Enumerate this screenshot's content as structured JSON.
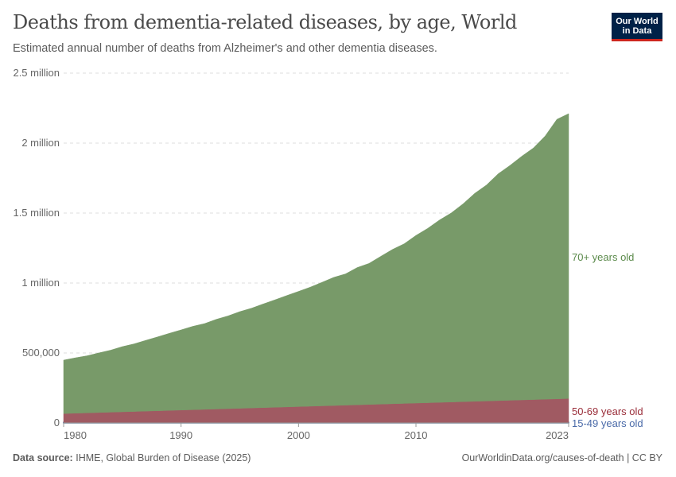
{
  "header": {
    "title": "Deaths from dementia-related diseases, by age, World",
    "subtitle": "Estimated annual number of deaths from Alzheimer's and other dementia diseases.",
    "logo_line1": "Our World",
    "logo_line2": "in Data"
  },
  "footer": {
    "source_label": "Data source:",
    "source": "IHME, Global Burden of Disease (2025)",
    "link": "OurWorldinData.org/causes-of-death | CC BY"
  },
  "chart_data": {
    "type": "area",
    "stacked": true,
    "title": "Deaths from dementia-related diseases, by age, World",
    "ylim": [
      0,
      2500000
    ],
    "xlim": [
      1980,
      2023
    ],
    "grid": "horizontal dashed",
    "legend_placement": "right (inline labels)",
    "yticks": [
      {
        "v": 0,
        "label": "0"
      },
      {
        "v": 500000,
        "label": "500,000"
      },
      {
        "v": 1000000,
        "label": "1 million"
      },
      {
        "v": 1500000,
        "label": "1.5 million"
      },
      {
        "v": 2000000,
        "label": "2 million"
      },
      {
        "v": 2500000,
        "label": "2.5 million"
      }
    ],
    "xticks": [
      {
        "v": 1980,
        "label": "1980"
      },
      {
        "v": 1990,
        "label": "1990"
      },
      {
        "v": 2000,
        "label": "2000"
      },
      {
        "v": 2010,
        "label": "2010"
      },
      {
        "v": 2023,
        "label": "2023"
      }
    ],
    "x": [
      1980,
      1981,
      1982,
      1983,
      1984,
      1985,
      1986,
      1987,
      1988,
      1989,
      1990,
      1991,
      1992,
      1993,
      1994,
      1995,
      1996,
      1997,
      1998,
      1999,
      2000,
      2001,
      2002,
      2003,
      2004,
      2005,
      2006,
      2007,
      2008,
      2009,
      2010,
      2011,
      2012,
      2013,
      2014,
      2015,
      2016,
      2017,
      2018,
      2019,
      2020,
      2021,
      2022,
      2023
    ],
    "series": [
      {
        "name": "15-49 years old",
        "color": "#4c6a9c",
        "label_color": "#4a6aa8",
        "values": [
          4000,
          4000,
          4000,
          4000,
          4000,
          4000,
          4000,
          4000,
          4000,
          4000,
          4000,
          4000,
          4000,
          4000,
          4000,
          4000,
          4000,
          4000,
          4000,
          4000,
          4000,
          4000,
          4000,
          4000,
          4000,
          4000,
          4000,
          4000,
          4000,
          4000,
          4000,
          4000,
          4000,
          4000,
          4000,
          4000,
          4000,
          4000,
          4000,
          4000,
          4000,
          4000,
          4000,
          4000
        ]
      },
      {
        "name": "50-69 years old",
        "color": "#a05a62",
        "label_color": "#9a2e3a",
        "values": [
          63000,
          65500,
          68000,
          70500,
          73000,
          75500,
          78000,
          80500,
          83000,
          85500,
          88000,
          90500,
          93000,
          95500,
          98000,
          100500,
          103000,
          105500,
          108000,
          110500,
          113000,
          115500,
          118000,
          120500,
          123000,
          125500,
          128000,
          130500,
          133000,
          135500,
          138000,
          140500,
          143000,
          145500,
          148000,
          150500,
          153000,
          155500,
          158000,
          160500,
          163000,
          165500,
          168000,
          170500
        ]
      },
      {
        "name": "70+ years old",
        "color": "#789a69",
        "label_color": "#5b8a4b",
        "values": [
          382000,
          396000,
          408000,
          426000,
          443000,
          466000,
          483000,
          506000,
          528000,
          551000,
          573000,
          596000,
          613000,
          641000,
          663000,
          691000,
          713000,
          741000,
          768000,
          796000,
          823000,
          851000,
          883000,
          916000,
          938000,
          981000,
          1008000,
          1056000,
          1103000,
          1141000,
          1198000,
          1246000,
          1303000,
          1351000,
          1413000,
          1486000,
          1543000,
          1621000,
          1678000,
          1741000,
          1798000,
          1881000,
          1998000,
          2036000
        ]
      }
    ]
  }
}
